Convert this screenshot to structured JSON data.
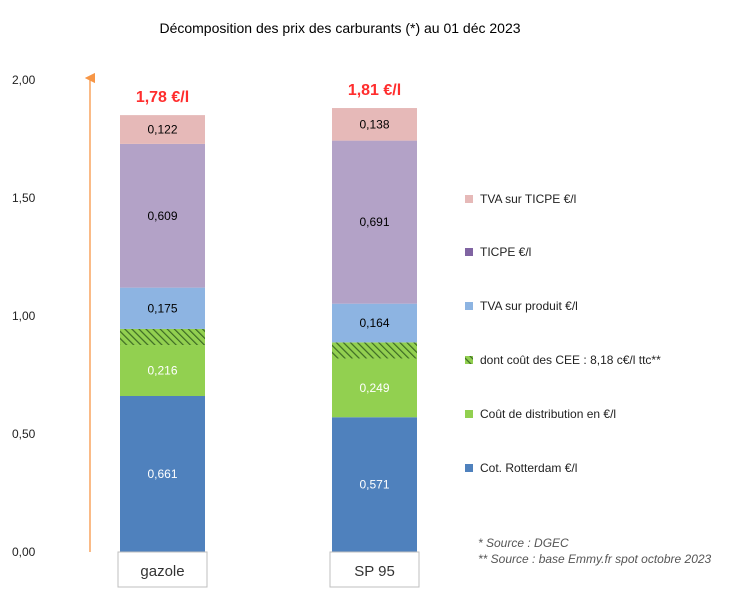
{
  "chart_data": {
    "type": "bar",
    "stacked": true,
    "title": "Décomposition des prix des carburants (*) au 01 déc 2023",
    "categories": [
      "gazole",
      "SP 95"
    ],
    "totals_labels": [
      "1,78 €/l",
      "1,81 €/l"
    ],
    "ylim": [
      0,
      2.0
    ],
    "yticks": [
      0,
      0.5,
      1.0,
      1.5,
      2.0
    ],
    "ytick_labels": [
      "0,00",
      "0,50",
      "1,00",
      "1,50",
      "2,00"
    ],
    "series": [
      {
        "name": "Cot. Rotterdam €/l",
        "color": "#4f81bd",
        "values": [
          0.661,
          0.571
        ],
        "labels": [
          "0,661",
          "0,571"
        ],
        "label_color": "#ffffff"
      },
      {
        "name": "Coût de distribution en €/l",
        "color": "#92d050",
        "values": [
          0.216,
          0.249
        ],
        "labels": [
          "0,216",
          "0,249"
        ],
        "label_color": "#ffffff"
      },
      {
        "name": "dont coût des CEE : 8,18 c€/l ttc**",
        "color": "#5b8a3a",
        "pattern": "hatch",
        "values": [
          0.0682,
          0.0682
        ],
        "labels": [
          "",
          ""
        ],
        "label_color": "#000000"
      },
      {
        "name": "TVA sur produit €/l",
        "color": "#8db4e2",
        "values": [
          0.175,
          0.164
        ],
        "labels": [
          "0,175",
          "0,164"
        ],
        "label_color": "#000000"
      },
      {
        "name": "TICPE €/l",
        "color": "#b3a2c7",
        "values": [
          0.609,
          0.691
        ],
        "labels": [
          "0,609",
          "0,691"
        ],
        "label_color": "#000000"
      },
      {
        "name": "TVA sur TICPE €/l",
        "color": "#e6b9b8",
        "values": [
          0.122,
          0.138
        ],
        "labels": [
          "0,122",
          "0,138"
        ],
        "label_color": "#000000"
      }
    ],
    "legend_order": [
      "TVA sur TICPE €/l",
      "TICPE €/l",
      "TVA sur produit €/l",
      "dont coût des CEE : 8,18 c€/l ttc**",
      "Coût de distribution en €/l",
      "Cot. Rotterdam €/l"
    ],
    "legend_colors": [
      "#e6b9b8",
      "#8064a2",
      "#8db4e2",
      "#5b8a3a",
      "#92d050",
      "#4f81bd"
    ],
    "legend_position": "right",
    "arrow_color": "#f79646",
    "notes": [
      "* Source : DGEC",
      "** Source : base Emmy.fr spot octobre 2023"
    ]
  }
}
